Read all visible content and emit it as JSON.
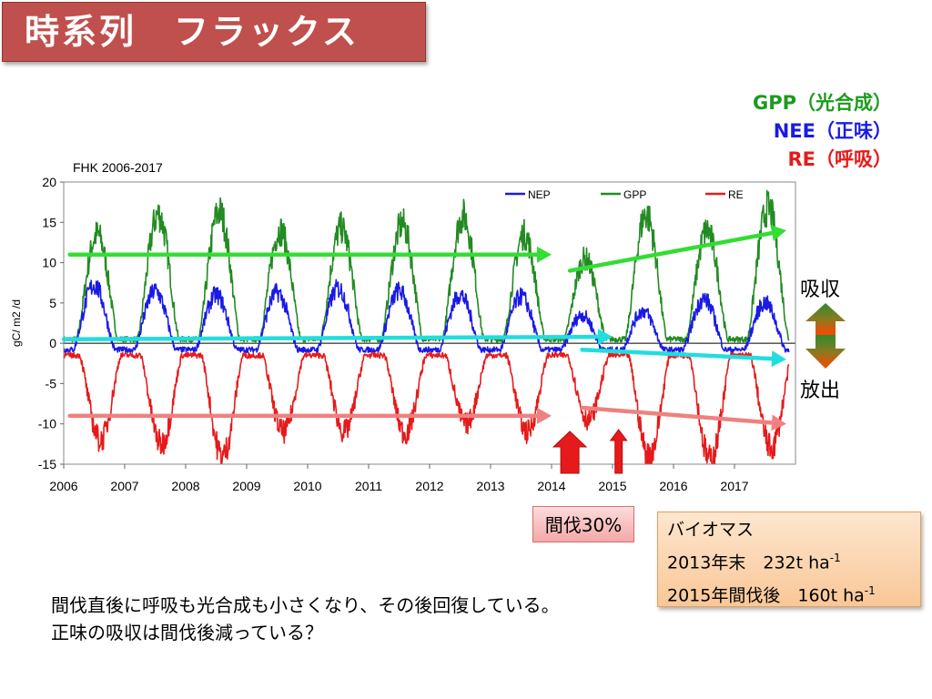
{
  "title": "時系列　フラックス",
  "legend_key": {
    "gpp": {
      "label": "GPP（光合成）",
      "color": "#1e9a1e"
    },
    "nee": {
      "label": "NEE（正味）",
      "color": "#1a1ae6"
    },
    "re": {
      "label": "RE（呼吸）",
      "color": "#e61a1a"
    }
  },
  "arrow_labels": {
    "absorb": "吸収",
    "release": "放出"
  },
  "thinning_label": "間伐30%",
  "biomass": {
    "heading": "バイオマス",
    "line1_prefix": "2013年末　232t ha",
    "line2_prefix": "2015年間伐後　160t ha",
    "exponent": "-1"
  },
  "notes": [
    "間伐直後に呼吸も光合成も小さくなり、その後回復している。",
    "正味の吸収は間伐後減っている？"
  ],
  "chart_data": {
    "type": "line",
    "title": "FHK 2006-2017",
    "ylabel": "gC/ m2 /d",
    "xlabel": "",
    "xlim": [
      2006,
      2018
    ],
    "ylim": [
      -15,
      20
    ],
    "xticks": [
      "2006",
      "2007",
      "2008",
      "2009",
      "2010",
      "2011",
      "2012",
      "2013",
      "2014",
      "2015",
      "2016",
      "2017"
    ],
    "yticks": [
      "20",
      "15",
      "10",
      "5",
      "0",
      "-5",
      "-10",
      "-15"
    ],
    "legend_position": "top-right",
    "series": [
      {
        "name": "GPP",
        "color": "#228b22",
        "seasonal_peaks": [
          {
            "x": 2006.55,
            "y": 13.5
          },
          {
            "x": 2007.55,
            "y": 16.0
          },
          {
            "x": 2008.55,
            "y": 16.3
          },
          {
            "x": 2009.55,
            "y": 14.0
          },
          {
            "x": 2010.55,
            "y": 14.3
          },
          {
            "x": 2011.55,
            "y": 14.8
          },
          {
            "x": 2012.55,
            "y": 15.8
          },
          {
            "x": 2013.55,
            "y": 13.5
          },
          {
            "x": 2014.55,
            "y": 10.5
          },
          {
            "x": 2015.55,
            "y": 16.0
          },
          {
            "x": 2016.55,
            "y": 14.0
          },
          {
            "x": 2017.55,
            "y": 16.8
          }
        ],
        "winter_baseline": 0.5
      },
      {
        "name": "NEP",
        "color": "#1a1ae6",
        "seasonal_peaks": [
          {
            "x": 2006.5,
            "y": 7.2
          },
          {
            "x": 2007.5,
            "y": 6.5
          },
          {
            "x": 2008.5,
            "y": 6.0
          },
          {
            "x": 2009.5,
            "y": 6.3
          },
          {
            "x": 2010.5,
            "y": 6.8
          },
          {
            "x": 2011.5,
            "y": 6.5
          },
          {
            "x": 2012.5,
            "y": 6.0
          },
          {
            "x": 2013.5,
            "y": 5.8
          },
          {
            "x": 2014.5,
            "y": 3.5
          },
          {
            "x": 2015.5,
            "y": 4.0
          },
          {
            "x": 2016.5,
            "y": 5.5
          },
          {
            "x": 2017.5,
            "y": 5.0
          }
        ],
        "winter_baseline": -0.8
      },
      {
        "name": "RE",
        "color": "#e61a1a",
        "seasonal_troughs": [
          {
            "x": 2006.6,
            "y": -12.0
          },
          {
            "x": 2007.6,
            "y": -12.5
          },
          {
            "x": 2008.6,
            "y": -14.0
          },
          {
            "x": 2009.6,
            "y": -11.0
          },
          {
            "x": 2010.6,
            "y": -11.0
          },
          {
            "x": 2011.6,
            "y": -11.2
          },
          {
            "x": 2012.6,
            "y": -10.0
          },
          {
            "x": 2013.6,
            "y": -11.0
          },
          {
            "x": 2014.6,
            "y": -9.5
          },
          {
            "x": 2015.6,
            "y": -14.0
          },
          {
            "x": 2016.6,
            "y": -14.5
          },
          {
            "x": 2017.6,
            "y": -13.0
          }
        ],
        "winter_baseline": -1.5
      }
    ],
    "trend_arrows": [
      {
        "color": "#33dd33",
        "from": {
          "x": 2006.1,
          "y": 11.0
        },
        "to": {
          "x": 2014.0,
          "y": 11.0
        }
      },
      {
        "color": "#33dd33",
        "from": {
          "x": 2014.3,
          "y": 9.0
        },
        "to": {
          "x": 2017.85,
          "y": 14.0
        }
      },
      {
        "color": "#22dddd",
        "from": {
          "x": 2006.0,
          "y": 0.5
        },
        "to": {
          "x": 2015.0,
          "y": 0.8
        }
      },
      {
        "color": "#22dddd",
        "from": {
          "x": 2014.5,
          "y": -0.8
        },
        "to": {
          "x": 2017.85,
          "y": -2.0
        }
      },
      {
        "color": "#f08080",
        "from": {
          "x": 2006.1,
          "y": -9.0
        },
        "to": {
          "x": 2014.0,
          "y": -9.0
        }
      },
      {
        "color": "#f08080",
        "from": {
          "x": 2014.5,
          "y": -8.0
        },
        "to": {
          "x": 2017.85,
          "y": -10.0
        }
      }
    ],
    "thinning_markers": [
      {
        "x": 2014.3,
        "size": "large",
        "color": "#e61a1a"
      },
      {
        "x": 2015.1,
        "size": "small",
        "color": "#e61a1a"
      }
    ]
  }
}
